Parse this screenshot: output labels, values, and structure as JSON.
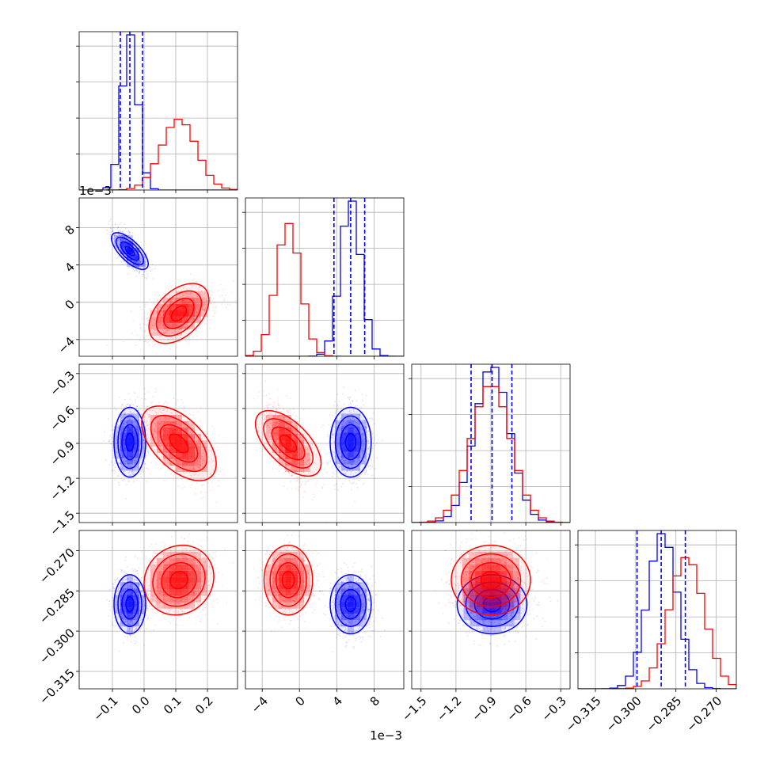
{
  "chart_data": {
    "type": "corner",
    "title": "",
    "grid": true,
    "series": [
      {
        "color": "#0000ff",
        "means": [
          -0.045,
          0.0055,
          -0.89,
          -0.29
        ],
        "stds": [
          0.025,
          0.0011,
          0.15,
          0.0055
        ],
        "cov_sign": [
          [
            0,
            -0.7,
            0,
            0
          ],
          [
            -0.7,
            0,
            0,
            0
          ],
          [
            0,
            0,
            0,
            0
          ],
          [
            0,
            0,
            0,
            0
          ]
        ]
      },
      {
        "color": "#ff0000",
        "means": [
          0.11,
          -0.0012,
          -0.9,
          -0.281
        ],
        "stds": [
          0.055,
          0.0013,
          0.17,
          0.0065
        ],
        "cov_sign": [
          [
            0,
            0.45,
            -0.55,
            0.1
          ],
          [
            0.45,
            0,
            -0.6,
            0
          ],
          [
            -0.55,
            -0.6,
            0,
            0
          ],
          [
            0.1,
            0,
            0,
            0
          ]
        ]
      }
    ],
    "quantiles_series0": [
      [
        -0.075,
        -0.045,
        -0.005
      ],
      [
        0.0037,
        0.0055,
        0.007
      ],
      [
        -1.07,
        -0.89,
        -0.72
      ],
      [
        -0.2995,
        -0.2905,
        -0.2815
      ]
    ],
    "parameters": [
      {
        "range": [
          -0.205,
          0.295
        ],
        "ticks": [
          -0.1,
          0.0,
          0.1,
          0.2
        ],
        "tick_labels": [
          "−0.1",
          "0.0",
          "0.1",
          "0.2"
        ],
        "offset_label": ""
      },
      {
        "range": [
          -0.0058,
          0.0112
        ],
        "ticks": [
          -0.004,
          0.0,
          0.004,
          0.008
        ],
        "tick_labels": [
          "−4",
          "0",
          "4",
          "8"
        ],
        "offset_label": "1e−3"
      },
      {
        "range": [
          -1.58,
          -0.22
        ],
        "ticks": [
          -1.5,
          -1.2,
          -0.9,
          -0.6,
          -0.3
        ],
        "tick_labels": [
          "−1.5",
          "−1.2",
          "−0.9",
          "−0.6",
          "−0.3"
        ],
        "offset_label": ""
      },
      {
        "range": [
          -0.3215,
          -0.2625
        ],
        "ticks": [
          -0.315,
          -0.3,
          -0.285,
          -0.27
        ],
        "tick_labels": [
          "−0.315",
          "−0.300",
          "−0.285",
          "−0.270"
        ],
        "offset_label": ""
      }
    ]
  }
}
